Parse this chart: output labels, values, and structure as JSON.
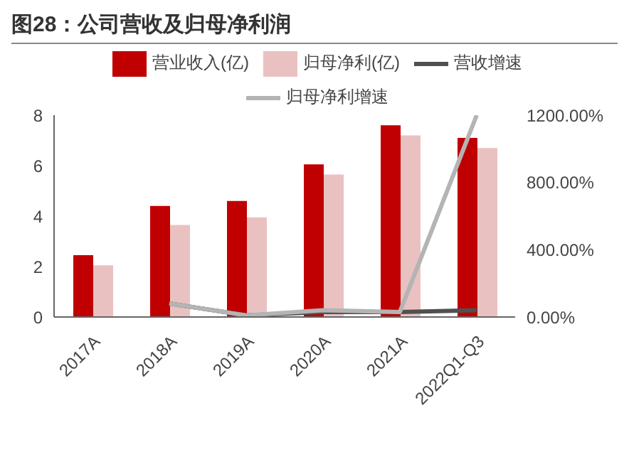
{
  "chart_data": {
    "type": "bar",
    "title": "图28：公司营收及归母净利润",
    "categories": [
      "2017A",
      "2018A",
      "2019A",
      "2020A",
      "2021A",
      "2022Q1-Q3"
    ],
    "series": [
      {
        "name": "营业收入(亿)",
        "color": "#c00000",
        "values": [
          2.45,
          4.4,
          4.6,
          6.05,
          7.6,
          7.1
        ]
      },
      {
        "name": "归母净利(亿)",
        "color": "#eac1c1",
        "values": [
          2.05,
          3.65,
          3.95,
          5.65,
          7.2,
          6.7
        ]
      },
      {
        "name": "营收增速",
        "type": "line",
        "axis": "y2",
        "color": "#505050",
        "values": [
          null,
          80,
          10,
          30,
          30,
          40
        ]
      },
      {
        "name": "归母净利增速",
        "type": "line",
        "axis": "y2",
        "color": "#b4b4b4",
        "values": [
          null,
          80,
          10,
          40,
          30,
          1200
        ]
      }
    ],
    "ylim": [
      0,
      8
    ],
    "yticks": [
      0,
      2,
      4,
      6,
      8
    ],
    "y2lim": [
      0,
      1200
    ],
    "y2ticks": [
      {
        "value": 0,
        "label": "0.00%"
      },
      {
        "value": 400,
        "label": "400.00%"
      },
      {
        "value": 800,
        "label": "800.00%"
      },
      {
        "value": 1200,
        "label": "1200.00%"
      }
    ],
    "grid": false,
    "legend": "top",
    "marker": "none",
    "line_style": "solid"
  }
}
